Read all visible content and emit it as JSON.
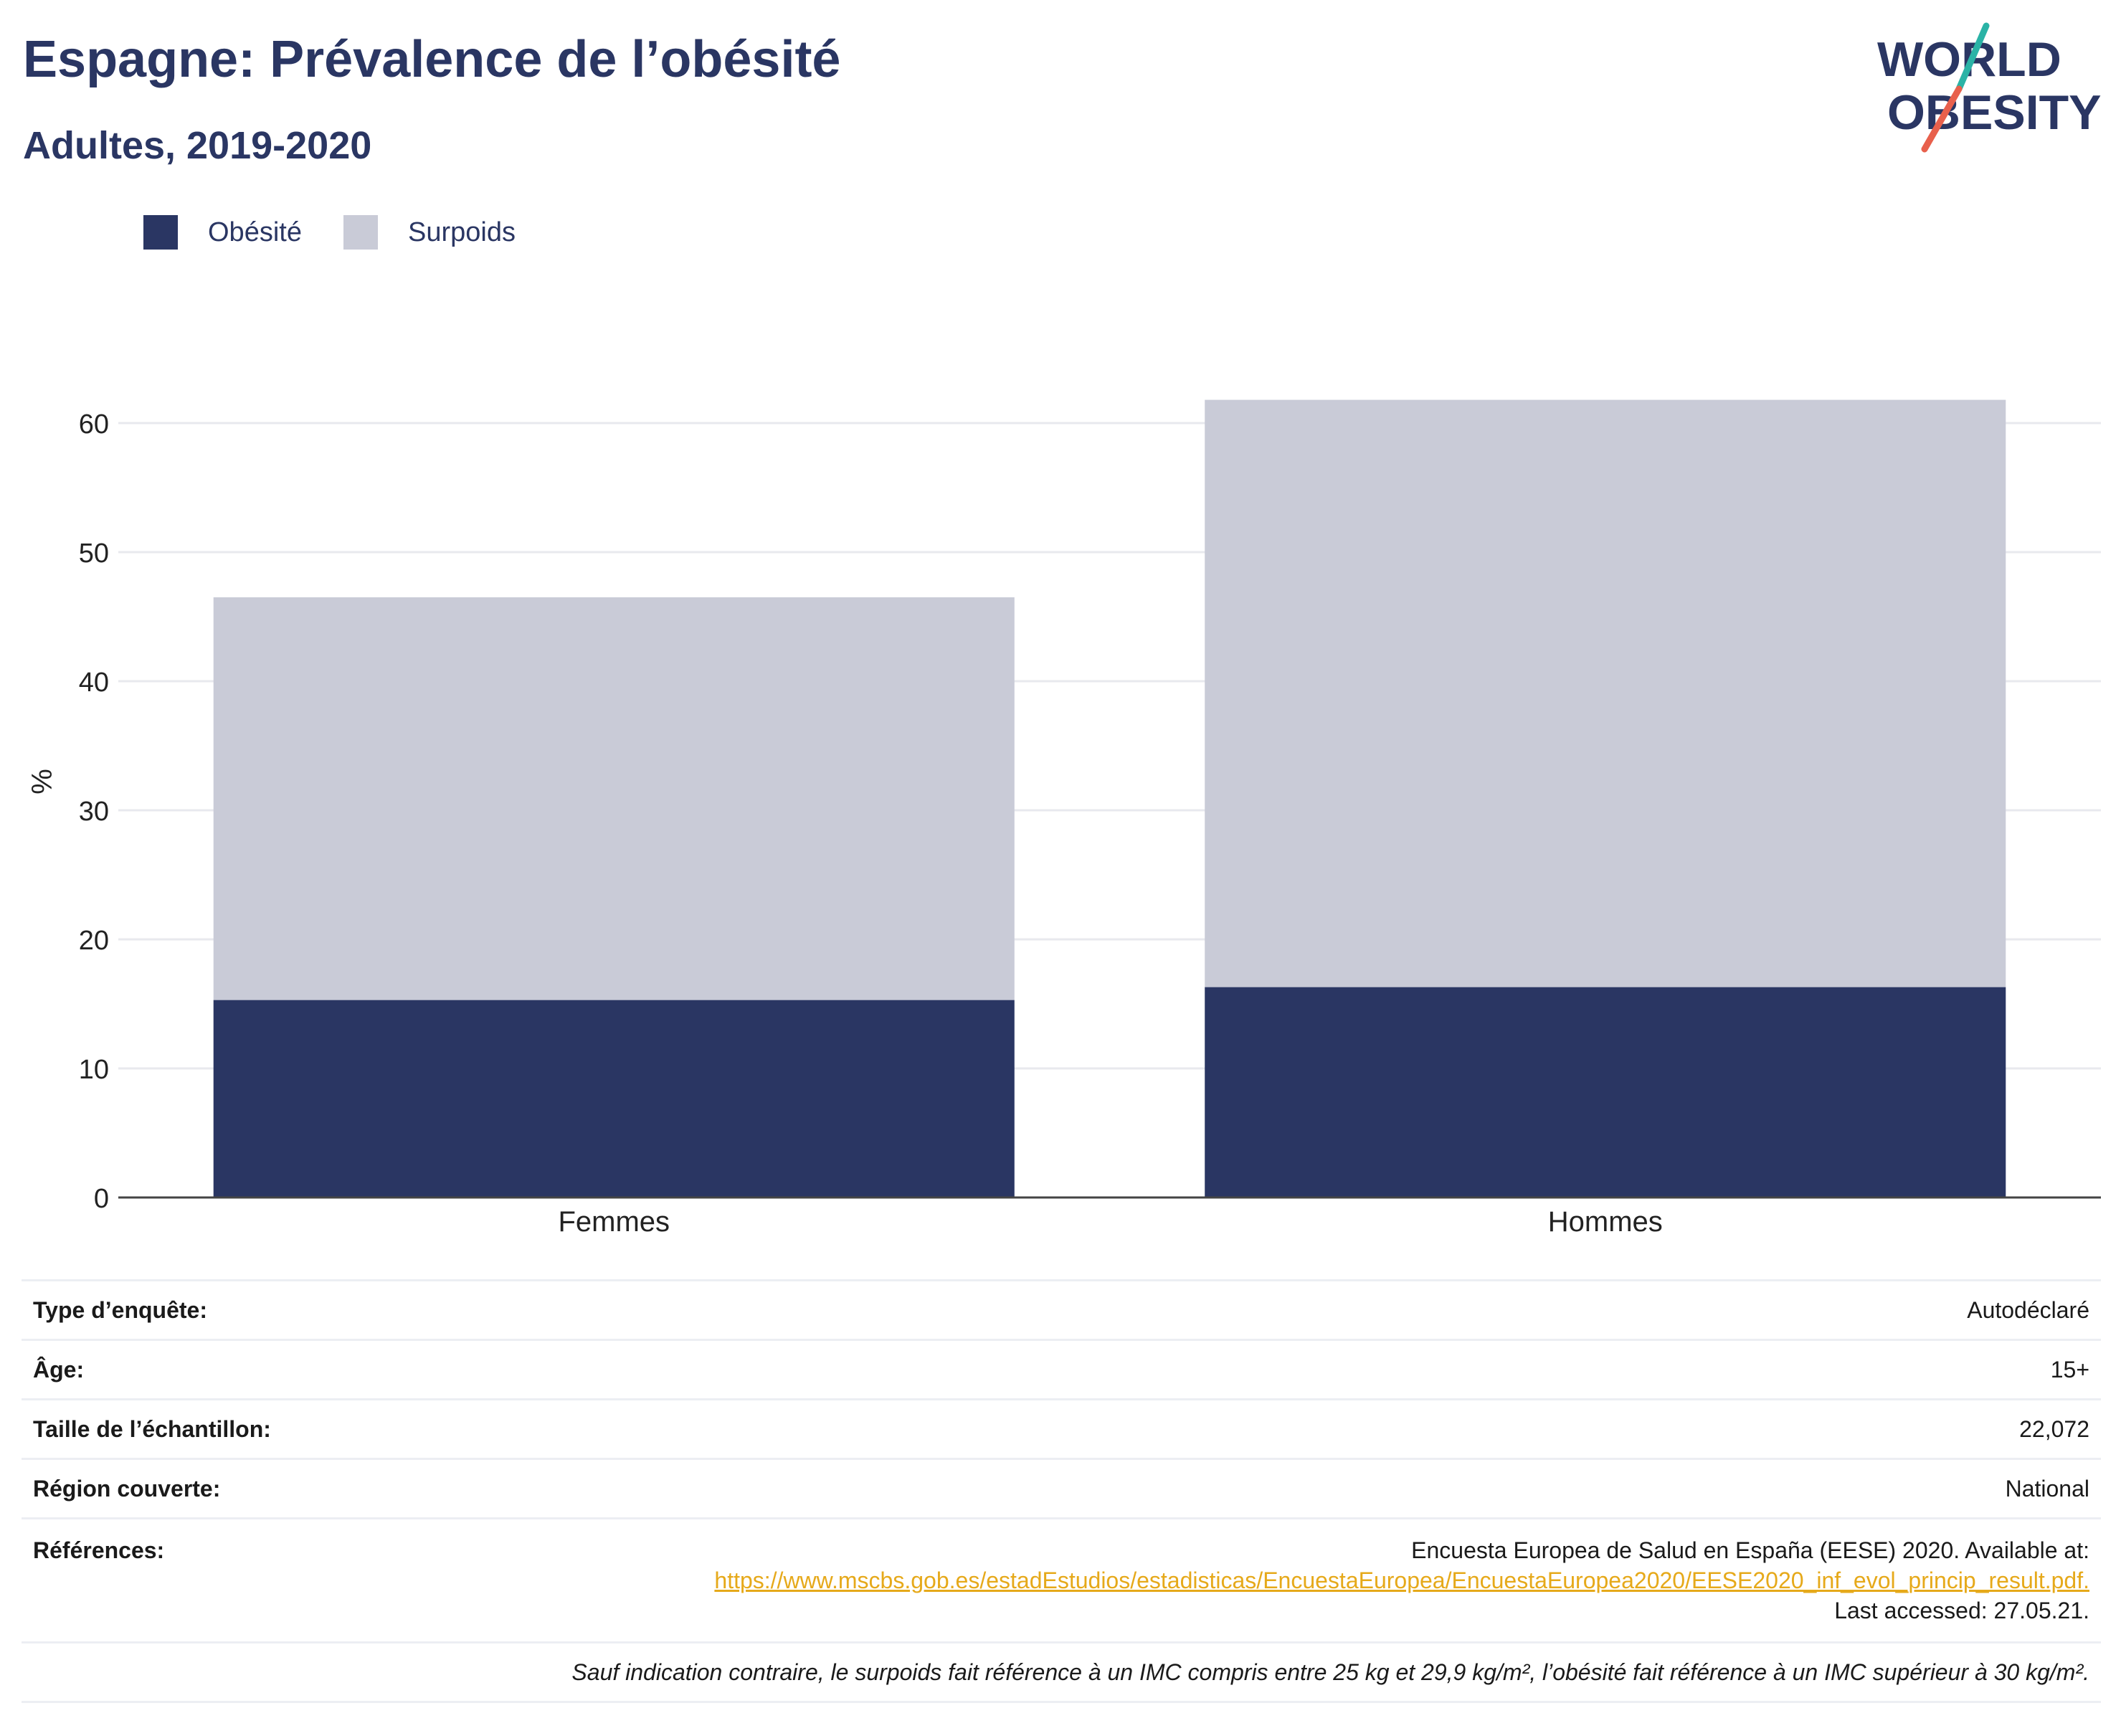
{
  "header": {
    "title": "Espagne: Prévalence de l’obésité",
    "subtitle": "Adultes, 2019-2020"
  },
  "logo": {
    "line1": "WORLD",
    "line2": "OBESITY"
  },
  "colors": {
    "obesity": "#2a3663",
    "overweight": "#c9cbd7",
    "title": "#2a3663",
    "link": "#e6a91a",
    "logo_slash_top": "#2ab3a6",
    "logo_slash_bottom": "#e8604c",
    "grid": "#e8e9ee",
    "axis": "#444444"
  },
  "legend": {
    "items": [
      {
        "label": "Obésité",
        "color": "#2a3663"
      },
      {
        "label": "Surpoids",
        "color": "#c9cbd7"
      }
    ]
  },
  "chart_data": {
    "type": "bar",
    "stacked": true,
    "categories": [
      "Femmes",
      "Hommes"
    ],
    "series": [
      {
        "name": "Obésité",
        "values": [
          15.3,
          16.3
        ]
      },
      {
        "name": "Surpoids",
        "values": [
          31.2,
          45.5
        ]
      }
    ],
    "ylabel": "%",
    "xlabel": "",
    "ylim": [
      0,
      65
    ],
    "yticks": [
      0,
      10,
      20,
      30,
      40,
      50,
      60
    ],
    "grid": true,
    "legend_position": "top-left"
  },
  "meta": {
    "rows": [
      {
        "key": "Type d’enquête:",
        "value": "Autodéclaré"
      },
      {
        "key": "Âge:",
        "value": "15+"
      },
      {
        "key": "Taille de l’échantillon:",
        "value": "22,072"
      },
      {
        "key": "Région couverte:",
        "value": "National"
      }
    ],
    "references": {
      "key": "Références:",
      "line1": "Encuesta Europea de Salud en España (EESE) 2020. Available at:",
      "link": "https://www.mscbs.gob.es/estadEstudios/estadisticas/EncuestaEuropea/EncuestaEuropea2020/EESE2020_inf_evol_princip_result.pdf.",
      "line3": "Last accessed: 27.05.21."
    },
    "footnote": "Sauf indication contraire, le surpoids fait référence à un IMC compris entre 25 kg et 29,9 kg/m², l’obésité fait référence à un IMC supérieur à 30 kg/m²."
  }
}
